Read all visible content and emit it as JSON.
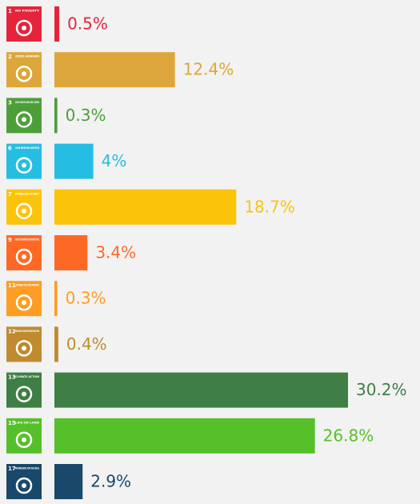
{
  "chart_data": {
    "type": "bar",
    "orientation": "horizontal",
    "categories": [
      {
        "number": "1",
        "label": "NO POVERTY"
      },
      {
        "number": "2",
        "label": "ZERO HUNGER"
      },
      {
        "number": "3",
        "label": "GOOD HEALTH AND WELL-BEING"
      },
      {
        "number": "6",
        "label": "CLEAN WATER AND SANITATION"
      },
      {
        "number": "7",
        "label": "AFFORDABLE AND CLEAN ENERGY"
      },
      {
        "number": "9",
        "label": "INDUSTRY, INNOVATION AND INFRASTRUCTURE"
      },
      {
        "number": "11",
        "label": "SUSTAINABLE CITIES AND COMMUNITIES"
      },
      {
        "number": "12",
        "label": "RESPONSIBLE CONSUMPTION AND PRODUCTION"
      },
      {
        "number": "13",
        "label": "CLIMATE ACTION"
      },
      {
        "number": "15",
        "label": "LIFE ON LAND"
      },
      {
        "number": "17",
        "label": "PARTNERSHIPS FOR THE GOALS"
      }
    ],
    "values": [
      0.5,
      12.4,
      0.3,
      4,
      18.7,
      3.4,
      0.3,
      0.4,
      30.2,
      26.8,
      2.9
    ],
    "value_labels": [
      "0.5%",
      "12.4%",
      "0.3%",
      "4%",
      "18.7%",
      "3.4%",
      "0.3%",
      "0.4%",
      "30.2%",
      "26.8%",
      "2.9%"
    ],
    "colors": [
      "#e5243b",
      "#dda63a",
      "#4c9f38",
      "#26bde2",
      "#fcc30b",
      "#fd6925",
      "#fd9d24",
      "#bf8b2e",
      "#3f7e44",
      "#56c02b",
      "#19486a"
    ]
  }
}
